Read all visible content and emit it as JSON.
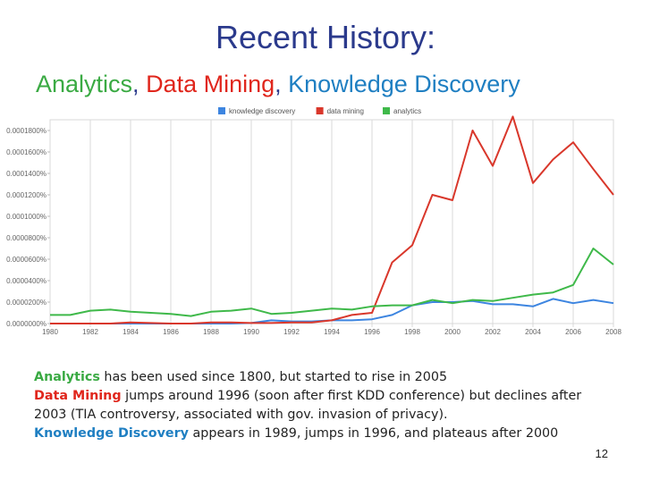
{
  "slide": {
    "title": "Recent History:",
    "subtitle": {
      "term1": "Analytics",
      "sep1": ", ",
      "term2": "Data Mining",
      "sep2": ", ",
      "term3": "Knowledge Discovery"
    },
    "notes": [
      {
        "keyword": "Analytics",
        "text": " has been used since  1800, but started to rise in 2005"
      },
      {
        "keyword": "Data Mining",
        "text": " jumps around 1996 (soon after first KDD conference) but declines after"
      },
      {
        "keyword": "",
        "text": "2003 (TIA controversy, associated with gov. invasion of privacy)."
      },
      {
        "keyword": "Knowledge Discovery",
        "text": " appears in 1989, jumps in 1996, and plateaus after 2000"
      }
    ],
    "page_number": "12"
  },
  "colors": {
    "knowledge_discovery": "#3d85e0",
    "data_mining": "#d9372b",
    "analytics": "#3fb94a",
    "grid": "#d9d9d9"
  },
  "chart_data": {
    "type": "line",
    "title": "",
    "xlabel": "",
    "ylabel": "",
    "xlim": [
      1980,
      2008
    ],
    "ylim": [
      0,
      1.9e-06
    ],
    "grid": true,
    "legend_position": "top-center",
    "x_ticks": [
      "1980",
      "1982",
      "1984",
      "1986",
      "1988",
      "1990",
      "1992",
      "1994",
      "1996",
      "1998",
      "2000",
      "2002",
      "2004",
      "2006",
      "2008"
    ],
    "y_ticks": [
      "0.0000000%",
      "0.0000200%",
      "0.0000400%",
      "0.0000600%",
      "0.0000800%",
      "0.0001000%",
      "0.0001200%",
      "0.0001400%",
      "0.0001600%",
      "0.0001800%"
    ],
    "y_tick_values": [
      0,
      2e-07,
      4e-07,
      6e-07,
      8e-07,
      1e-06,
      1.2e-06,
      1.4e-06,
      1.6e-06,
      1.8e-06
    ],
    "x": [
      1980,
      1981,
      1982,
      1983,
      1984,
      1985,
      1986,
      1987,
      1988,
      1989,
      1990,
      1991,
      1992,
      1993,
      1994,
      1995,
      1996,
      1997,
      1998,
      1999,
      2000,
      2001,
      2002,
      2003,
      2004,
      2005,
      2006,
      2007,
      2008
    ],
    "series": [
      {
        "name": "knowledge discovery",
        "color_key": "knowledge_discovery",
        "values": [
          0,
          0,
          0,
          0,
          0,
          0,
          0,
          0,
          0,
          0,
          5e-09,
          3e-08,
          2e-08,
          2e-08,
          3e-08,
          3e-08,
          4e-08,
          8e-08,
          1.7e-07,
          2e-07,
          2e-07,
          2.1e-07,
          1.8e-07,
          1.8e-07,
          1.6e-07,
          2.3e-07,
          1.9e-07,
          2.2e-07,
          1.9e-07
        ]
      },
      {
        "name": "data mining",
        "color_key": "data_mining",
        "values": [
          0,
          0,
          0,
          0,
          1e-08,
          5e-09,
          0,
          0,
          1e-08,
          1e-08,
          5e-09,
          5e-09,
          1e-08,
          1e-08,
          3e-08,
          8e-08,
          1e-07,
          5.7e-07,
          7.3e-07,
          1.2e-06,
          1.15e-06,
          1.8e-06,
          1.47e-06,
          1.93e-06,
          1.31e-06,
          1.53e-06,
          1.69e-06,
          1.44e-06,
          1.2e-06
        ]
      },
      {
        "name": "analytics",
        "color_key": "analytics",
        "values": [
          8e-08,
          8e-08,
          1.2e-07,
          1.3e-07,
          1.1e-07,
          1e-07,
          9e-08,
          7e-08,
          1.1e-07,
          1.2e-07,
          1.4e-07,
          9e-08,
          1e-07,
          1.2e-07,
          1.4e-07,
          1.3e-07,
          1.6e-07,
          1.7e-07,
          1.7e-07,
          2.2e-07,
          1.9e-07,
          2.2e-07,
          2.1e-07,
          2.4e-07,
          2.7e-07,
          2.9e-07,
          3.6e-07,
          7e-07,
          5.5e-07
        ]
      }
    ]
  }
}
